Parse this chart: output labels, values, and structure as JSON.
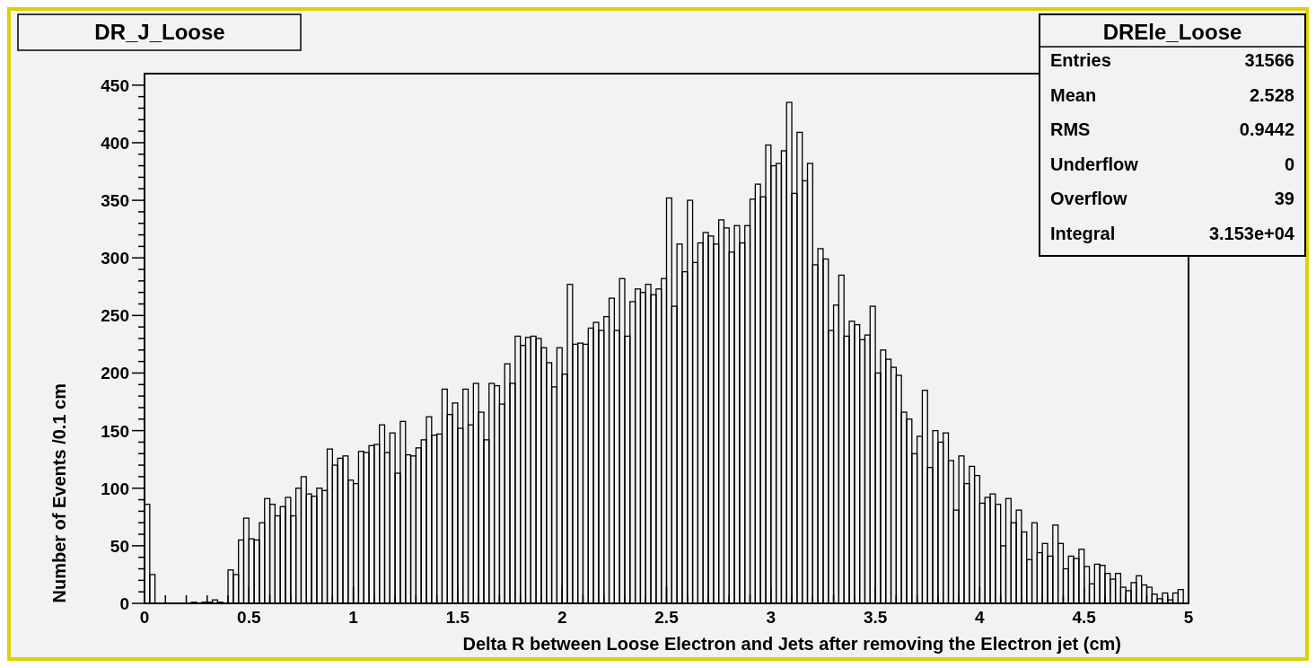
{
  "chart_data": {
    "type": "histogram",
    "title": "DR_J_Loose",
    "xlabel": "Delta R between Loose Electron and Jets after removing the Electron jet (cm)",
    "ylabel": "Number of Events /0.1 cm",
    "color": "#000000",
    "annotations": [
      "DREle_Loose",
      "Entries 31566",
      "Mean 2.528",
      "RMS 0.9442",
      "Underflow 0",
      "Overflow 39",
      "Integral 3.153e+04"
    ],
    "bins": [
      0,
      0.025,
      0.05,
      0.075,
      0.1,
      0.125,
      0.15,
      0.175,
      0.2,
      0.225,
      0.25,
      0.275,
      0.3,
      0.325,
      0.35,
      0.375,
      0.4,
      0.425,
      0.45,
      0.475,
      0.5,
      0.525,
      0.55,
      0.575,
      0.6,
      0.625,
      0.65,
      0.675,
      0.7,
      0.725,
      0.75,
      0.775,
      0.8,
      0.825,
      0.85,
      0.875,
      0.9,
      0.925,
      0.95,
      0.975,
      1,
      1.025,
      1.05,
      1.075,
      1.1,
      1.125,
      1.15,
      1.175,
      1.2,
      1.225,
      1.25,
      1.275,
      1.3,
      1.325,
      1.35,
      1.375,
      1.4,
      1.425,
      1.45,
      1.475,
      1.5,
      1.525,
      1.55,
      1.575,
      1.6,
      1.625,
      1.65,
      1.675,
      1.7,
      1.725,
      1.75,
      1.775,
      1.8,
      1.825,
      1.85,
      1.875,
      1.9,
      1.925,
      1.95,
      1.975,
      2,
      2.025,
      2.05,
      2.075,
      2.1,
      2.125,
      2.15,
      2.175,
      2.2,
      2.225,
      2.25,
      2.275,
      2.3,
      2.325,
      2.35,
      2.375,
      2.4,
      2.425,
      2.45,
      2.475,
      2.5,
      2.525,
      2.55,
      2.575,
      2.6,
      2.625,
      2.65,
      2.675,
      2.7,
      2.725,
      2.75,
      2.775,
      2.8,
      2.825,
      2.85,
      2.875,
      2.9,
      2.925,
      2.95,
      2.975,
      3,
      3.025,
      3.05,
      3.075,
      3.1,
      3.125,
      3.15,
      3.175,
      3.2,
      3.225,
      3.25,
      3.275,
      3.3,
      3.325,
      3.35,
      3.375,
      3.4,
      3.425,
      3.45,
      3.475,
      3.5,
      3.525,
      3.55,
      3.575,
      3.6,
      3.625,
      3.65,
      3.675,
      3.7,
      3.725,
      3.75,
      3.775,
      3.8,
      3.825,
      3.85,
      3.875,
      3.9,
      3.925,
      3.95,
      3.975,
      4,
      4.025,
      4.05,
      4.075,
      4.1,
      4.125,
      4.15,
      4.175,
      4.2,
      4.225,
      4.25,
      4.275,
      4.3,
      4.325,
      4.35,
      4.375,
      4.4,
      4.425,
      4.45,
      4.475,
      4.5,
      4.525,
      4.55,
      4.575,
      4.6,
      4.625,
      4.65,
      4.675,
      4.7,
      4.725,
      4.75,
      4.775,
      4.8,
      4.825,
      4.85,
      4.875,
      4.9,
      4.925,
      4.95,
      4.975,
      5
    ],
    "values": [
      86,
      25,
      0,
      0,
      0,
      0,
      0,
      0,
      0,
      1,
      0,
      1,
      1,
      3,
      1,
      0,
      29,
      25,
      55,
      74,
      56,
      55,
      70,
      91,
      86,
      76,
      84,
      92,
      76,
      100,
      110,
      95,
      93,
      100,
      98,
      134,
      120,
      126,
      128,
      107,
      104,
      132,
      131,
      137,
      138,
      155,
      131,
      148,
      113,
      158,
      129,
      128,
      135,
      142,
      162,
      146,
      147,
      186,
      164,
      174,
      152,
      186,
      155,
      191,
      166,
      142,
      191,
      189,
      173,
      208,
      191,
      232,
      224,
      231,
      232,
      230,
      222,
      209,
      188,
      222,
      199,
      277,
      225,
      226,
      225,
      239,
      244,
      237,
      249,
      265,
      237,
      282,
      232,
      262,
      273,
      270,
      277,
      268,
      273,
      282,
      352,
      258,
      312,
      288,
      350,
      296,
      313,
      322,
      319,
      312,
      333,
      326,
      305,
      328,
      313,
      328,
      351,
      364,
      353,
      398,
      380,
      382,
      393,
      435,
      356,
      409,
      367,
      382,
      294,
      308,
      299,
      237,
      259,
      285,
      232,
      245,
      242,
      229,
      233,
      258,
      200,
      220,
      212,
      205,
      198,
      166,
      160,
      130,
      145,
      185,
      118,
      150,
      140,
      148,
      124,
      81,
      128,
      104,
      119,
      111,
      87,
      92,
      95,
      86,
      50,
      91,
      70,
      81,
      62,
      38,
      70,
      44,
      52,
      41,
      68,
      52,
      30,
      41,
      39,
      47,
      32,
      17,
      34,
      33,
      26,
      21,
      26,
      14,
      11,
      18,
      24,
      16,
      14,
      8,
      4,
      9,
      3,
      9,
      12,
      0
    ],
    "xlim": [
      0,
      5
    ],
    "ylim": [
      0,
      460
    ],
    "xticks": [
      0,
      {
        "value": 0.1,
        "label": null
      },
      {
        "value": 0.2,
        "label": null
      },
      {
        "value": 0.3,
        "label": null
      },
      {
        "value": 0.4,
        "label": null
      },
      0.5,
      {
        "value": 0.6,
        "label": null
      },
      {
        "value": 0.7,
        "label": null
      },
      {
        "value": 0.8,
        "label": null
      },
      {
        "value": 0.9,
        "label": null
      },
      1,
      {
        "value": 1.1,
        "label": null
      },
      {
        "value": 1.2,
        "label": null
      },
      {
        "value": 1.3,
        "label": null
      },
      {
        "value": 1.4,
        "label": null
      },
      1.5,
      {
        "value": 1.6,
        "label": null
      },
      {
        "value": 1.7,
        "label": null
      },
      {
        "value": 1.8,
        "label": null
      },
      {
        "value": 1.9,
        "label": null
      },
      2,
      {
        "value": 2.1,
        "label": null
      },
      {
        "value": 2.2,
        "label": null
      },
      {
        "value": 2.3,
        "label": null
      },
      {
        "value": 2.4,
        "label": null
      },
      2.5,
      {
        "value": 2.6,
        "label": null
      },
      {
        "value": 2.7,
        "label": null
      },
      {
        "value": 2.8,
        "label": null
      },
      {
        "value": 2.9,
        "label": null
      },
      3,
      {
        "value": 3.1,
        "label": null
      },
      {
        "value": 3.2,
        "label": null
      },
      {
        "value": 3.3,
        "label": null
      },
      {
        "value": 3.4,
        "label": null
      },
      3.5,
      {
        "value": 3.6,
        "label": null
      },
      {
        "value": 3.7,
        "label": null
      },
      {
        "value": 3.8,
        "label": null
      },
      {
        "value": 3.9,
        "label": null
      },
      4,
      {
        "value": 4.1,
        "label": null
      },
      {
        "value": 4.2,
        "label": null
      },
      {
        "value": 4.3,
        "label": null
      },
      {
        "value": 4.4,
        "label": null
      },
      4.5,
      {
        "value": 4.6,
        "label": null
      },
      {
        "value": 4.7,
        "label": null
      },
      {
        "value": 4.8,
        "label": null
      },
      {
        "value": 4.9,
        "label": null
      },
      5
    ],
    "yticks": [
      0,
      {
        "value": 10,
        "label": null
      },
      {
        "value": 20,
        "label": null
      },
      {
        "value": 30,
        "label": null
      },
      {
        "value": 40,
        "label": null
      },
      50,
      {
        "value": 60,
        "label": null
      },
      {
        "value": 70,
        "label": null
      },
      {
        "value": 80,
        "label": null
      },
      {
        "value": 90,
        "label": null
      },
      100,
      {
        "value": 110,
        "label": null
      },
      {
        "value": 120,
        "label": null
      },
      {
        "value": 130,
        "label": null
      },
      {
        "value": 140,
        "label": null
      },
      150,
      {
        "value": 160,
        "label": null
      },
      {
        "value": 170,
        "label": null
      },
      {
        "value": 180,
        "label": null
      },
      {
        "value": 190,
        "label": null
      },
      200,
      {
        "value": 210,
        "label": null
      },
      {
        "value": 220,
        "label": null
      },
      {
        "value": 230,
        "label": null
      },
      {
        "value": 240,
        "label": null
      },
      250,
      {
        "value": 260,
        "label": null
      },
      {
        "value": 270,
        "label": null
      },
      {
        "value": 280,
        "label": null
      },
      {
        "value": 290,
        "label": null
      },
      300,
      {
        "value": 310,
        "label": null
      },
      {
        "value": 320,
        "label": null
      },
      {
        "value": 330,
        "label": null
      },
      {
        "value": 340,
        "label": null
      },
      350,
      {
        "value": 360,
        "label": null
      },
      {
        "value": 370,
        "label": null
      },
      {
        "value": 380,
        "label": null
      },
      {
        "value": 390,
        "label": null
      },
      400,
      {
        "value": 410,
        "label": null
      },
      {
        "value": 420,
        "label": null
      },
      {
        "value": 430,
        "label": null
      },
      {
        "value": 440,
        "label": null
      },
      450
    ]
  }
}
